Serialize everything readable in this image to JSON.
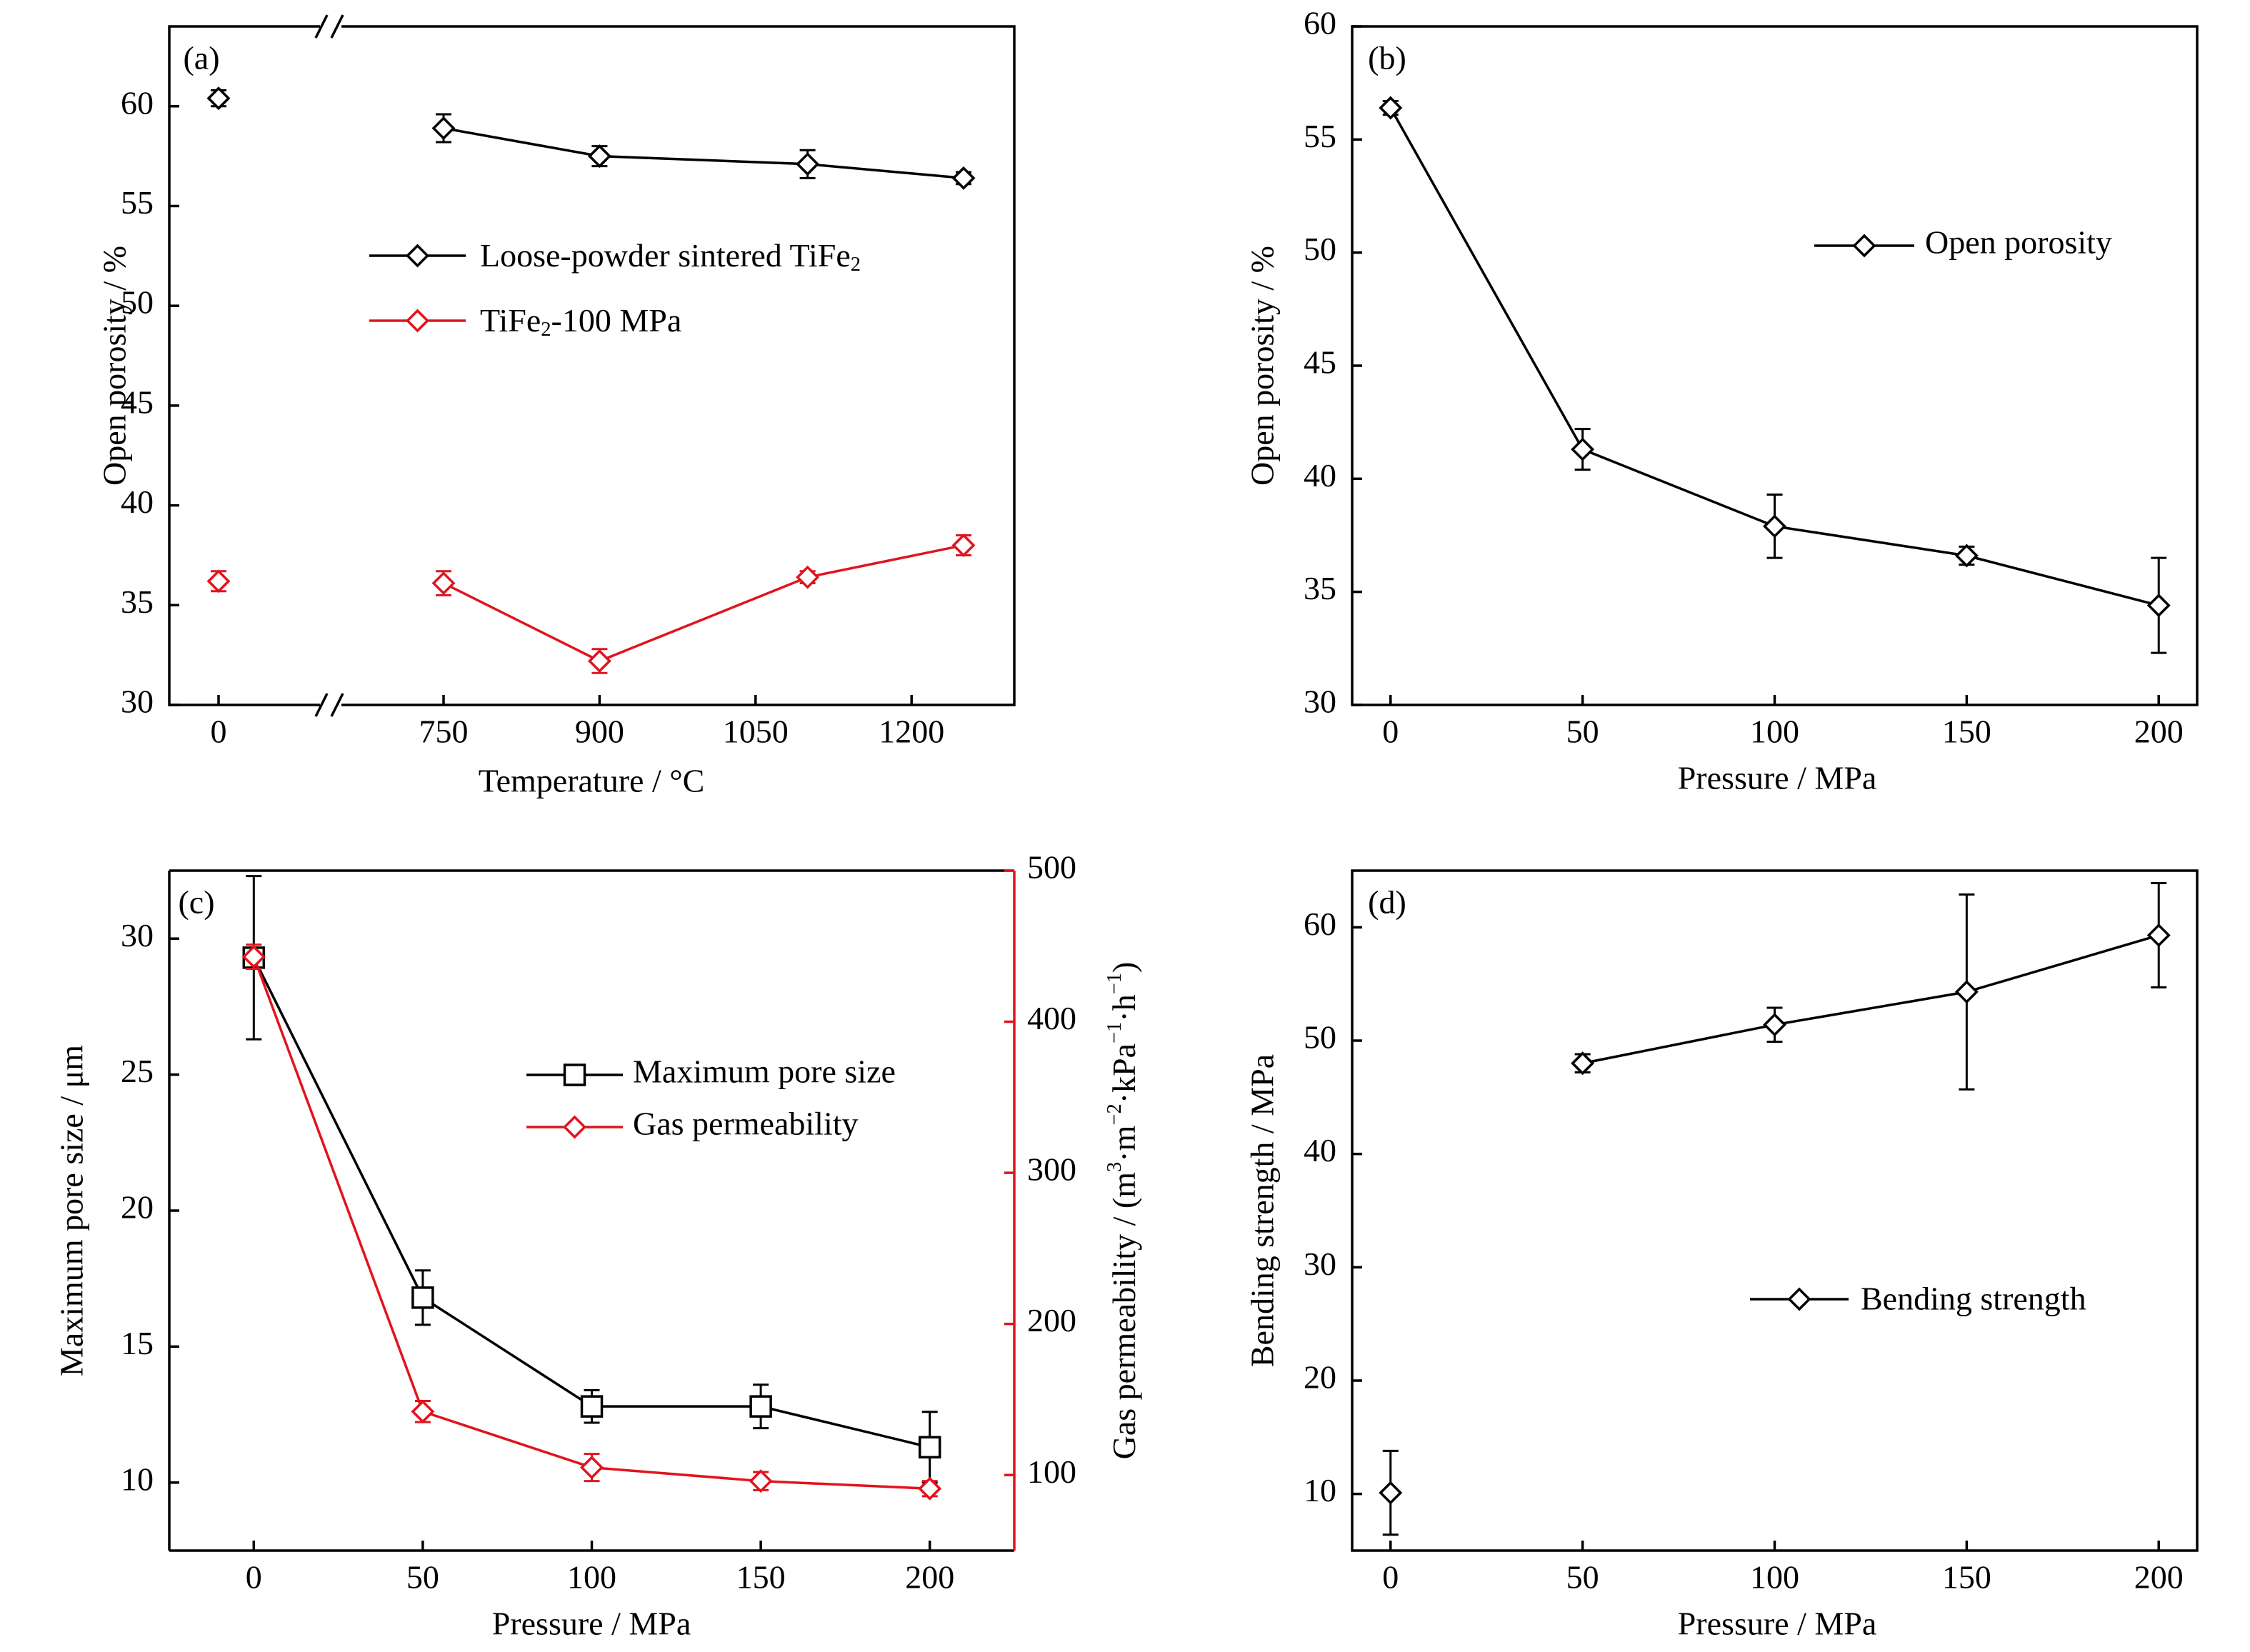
{
  "colors": {
    "black": "#000000",
    "red": "#e0141e"
  },
  "chart_data": [
    {
      "panel_label": "(a)",
      "type": "line",
      "xlabel": "Temperature / °C",
      "ylabel": "Open porosity / %",
      "xticks": [
        "0",
        "750",
        "900",
        "1050",
        "1200"
      ],
      "ylim": [
        30,
        64
      ],
      "yticks": [
        30,
        35,
        40,
        45,
        50,
        55,
        60
      ],
      "grid": false,
      "legend_position": "center-right",
      "axis_break": true,
      "series": [
        {
          "name": "Loose-powder sintered TiFe₂",
          "color": "#000000",
          "marker": "diamond",
          "unconnected_point": {
            "x": 0,
            "y": 60.4,
            "err": 0.4
          },
          "x": [
            750,
            900,
            1100,
            1250
          ],
          "y": [
            58.9,
            57.5,
            57.1,
            56.4
          ],
          "err": [
            0.7,
            0.5,
            0.7,
            0.3
          ]
        },
        {
          "name": "TiFe₂-100 MPa",
          "color": "#e0141e",
          "marker": "diamond",
          "unconnected_point": {
            "x": 0,
            "y": 36.2,
            "err": 0.5
          },
          "x": [
            750,
            900,
            1100,
            1250
          ],
          "y": [
            36.1,
            32.2,
            36.4,
            38.0
          ],
          "err": [
            0.6,
            0.6,
            0.3,
            0.5
          ]
        }
      ]
    },
    {
      "panel_label": "(b)",
      "type": "line",
      "xlabel": "Pressure / MPa",
      "ylabel": "Open porosity / %",
      "xlim": [
        -10,
        210
      ],
      "ylim": [
        30,
        60
      ],
      "xticks": [
        "0",
        "50",
        "100",
        "150",
        "200"
      ],
      "yticks": [
        30,
        35,
        40,
        45,
        50,
        55,
        60
      ],
      "grid": false,
      "legend_position": "top-right",
      "series": [
        {
          "name": "Open porosity",
          "color": "#000000",
          "marker": "diamond",
          "x": [
            0,
            50,
            100,
            150,
            200
          ],
          "y": [
            56.4,
            41.3,
            37.9,
            36.6,
            34.4
          ],
          "err": [
            0.3,
            0.9,
            1.4,
            0.4,
            2.1
          ]
        }
      ]
    },
    {
      "panel_label": "(c)",
      "type": "line",
      "xlabel": "Pressure / MPa",
      "ylabel": "Maximum pore size / μm",
      "ylabel_right": "Gas permeability / (m³·m⁻²·kPa⁻¹·h⁻¹)",
      "xlim": [
        -25,
        225
      ],
      "ylim": [
        7.5,
        32.5
      ],
      "ylim_right": [
        50,
        500
      ],
      "xticks": [
        "0",
        "50",
        "100",
        "150",
        "200"
      ],
      "yticks": [
        10,
        15,
        20,
        25,
        30
      ],
      "yticks_right": [
        100,
        200,
        300,
        400,
        500
      ],
      "grid": false,
      "legend_position": "center-right",
      "series": [
        {
          "name": "Maximum pore size",
          "axis": "left",
          "color": "#000000",
          "marker": "square",
          "x": [
            0,
            50,
            100,
            150,
            200
          ],
          "y": [
            29.3,
            16.8,
            12.8,
            12.8,
            11.3
          ],
          "err": [
            3.0,
            1.0,
            0.6,
            0.8,
            1.3
          ]
        },
        {
          "name": "Gas permeability",
          "axis": "right",
          "color": "#e0141e",
          "marker": "diamond",
          "x": [
            0,
            50,
            100,
            150,
            200
          ],
          "y": [
            443,
            142,
            105,
            96,
            91
          ],
          "err": [
            8,
            7,
            9,
            6,
            5
          ]
        }
      ]
    },
    {
      "panel_label": "(d)",
      "type": "line",
      "xlabel": "Pressure / MPa",
      "ylabel": "Bending strength / MPa",
      "xlim": [
        -10,
        210
      ],
      "ylim": [
        5,
        65
      ],
      "xticks": [
        "0",
        "50",
        "100",
        "150",
        "200"
      ],
      "yticks": [
        10,
        20,
        30,
        40,
        50,
        60
      ],
      "grid": false,
      "legend_position": "lower-right",
      "series": [
        {
          "name": "Bending strength",
          "color": "#000000",
          "marker": "diamond",
          "unconnected_point": {
            "x": 0,
            "y": 10.1,
            "err": 3.7
          },
          "x": [
            50,
            100,
            150,
            200
          ],
          "y": [
            48.0,
            51.4,
            54.3,
            59.3
          ],
          "err": [
            0.8,
            1.5,
            8.6,
            4.6
          ]
        }
      ]
    }
  ]
}
